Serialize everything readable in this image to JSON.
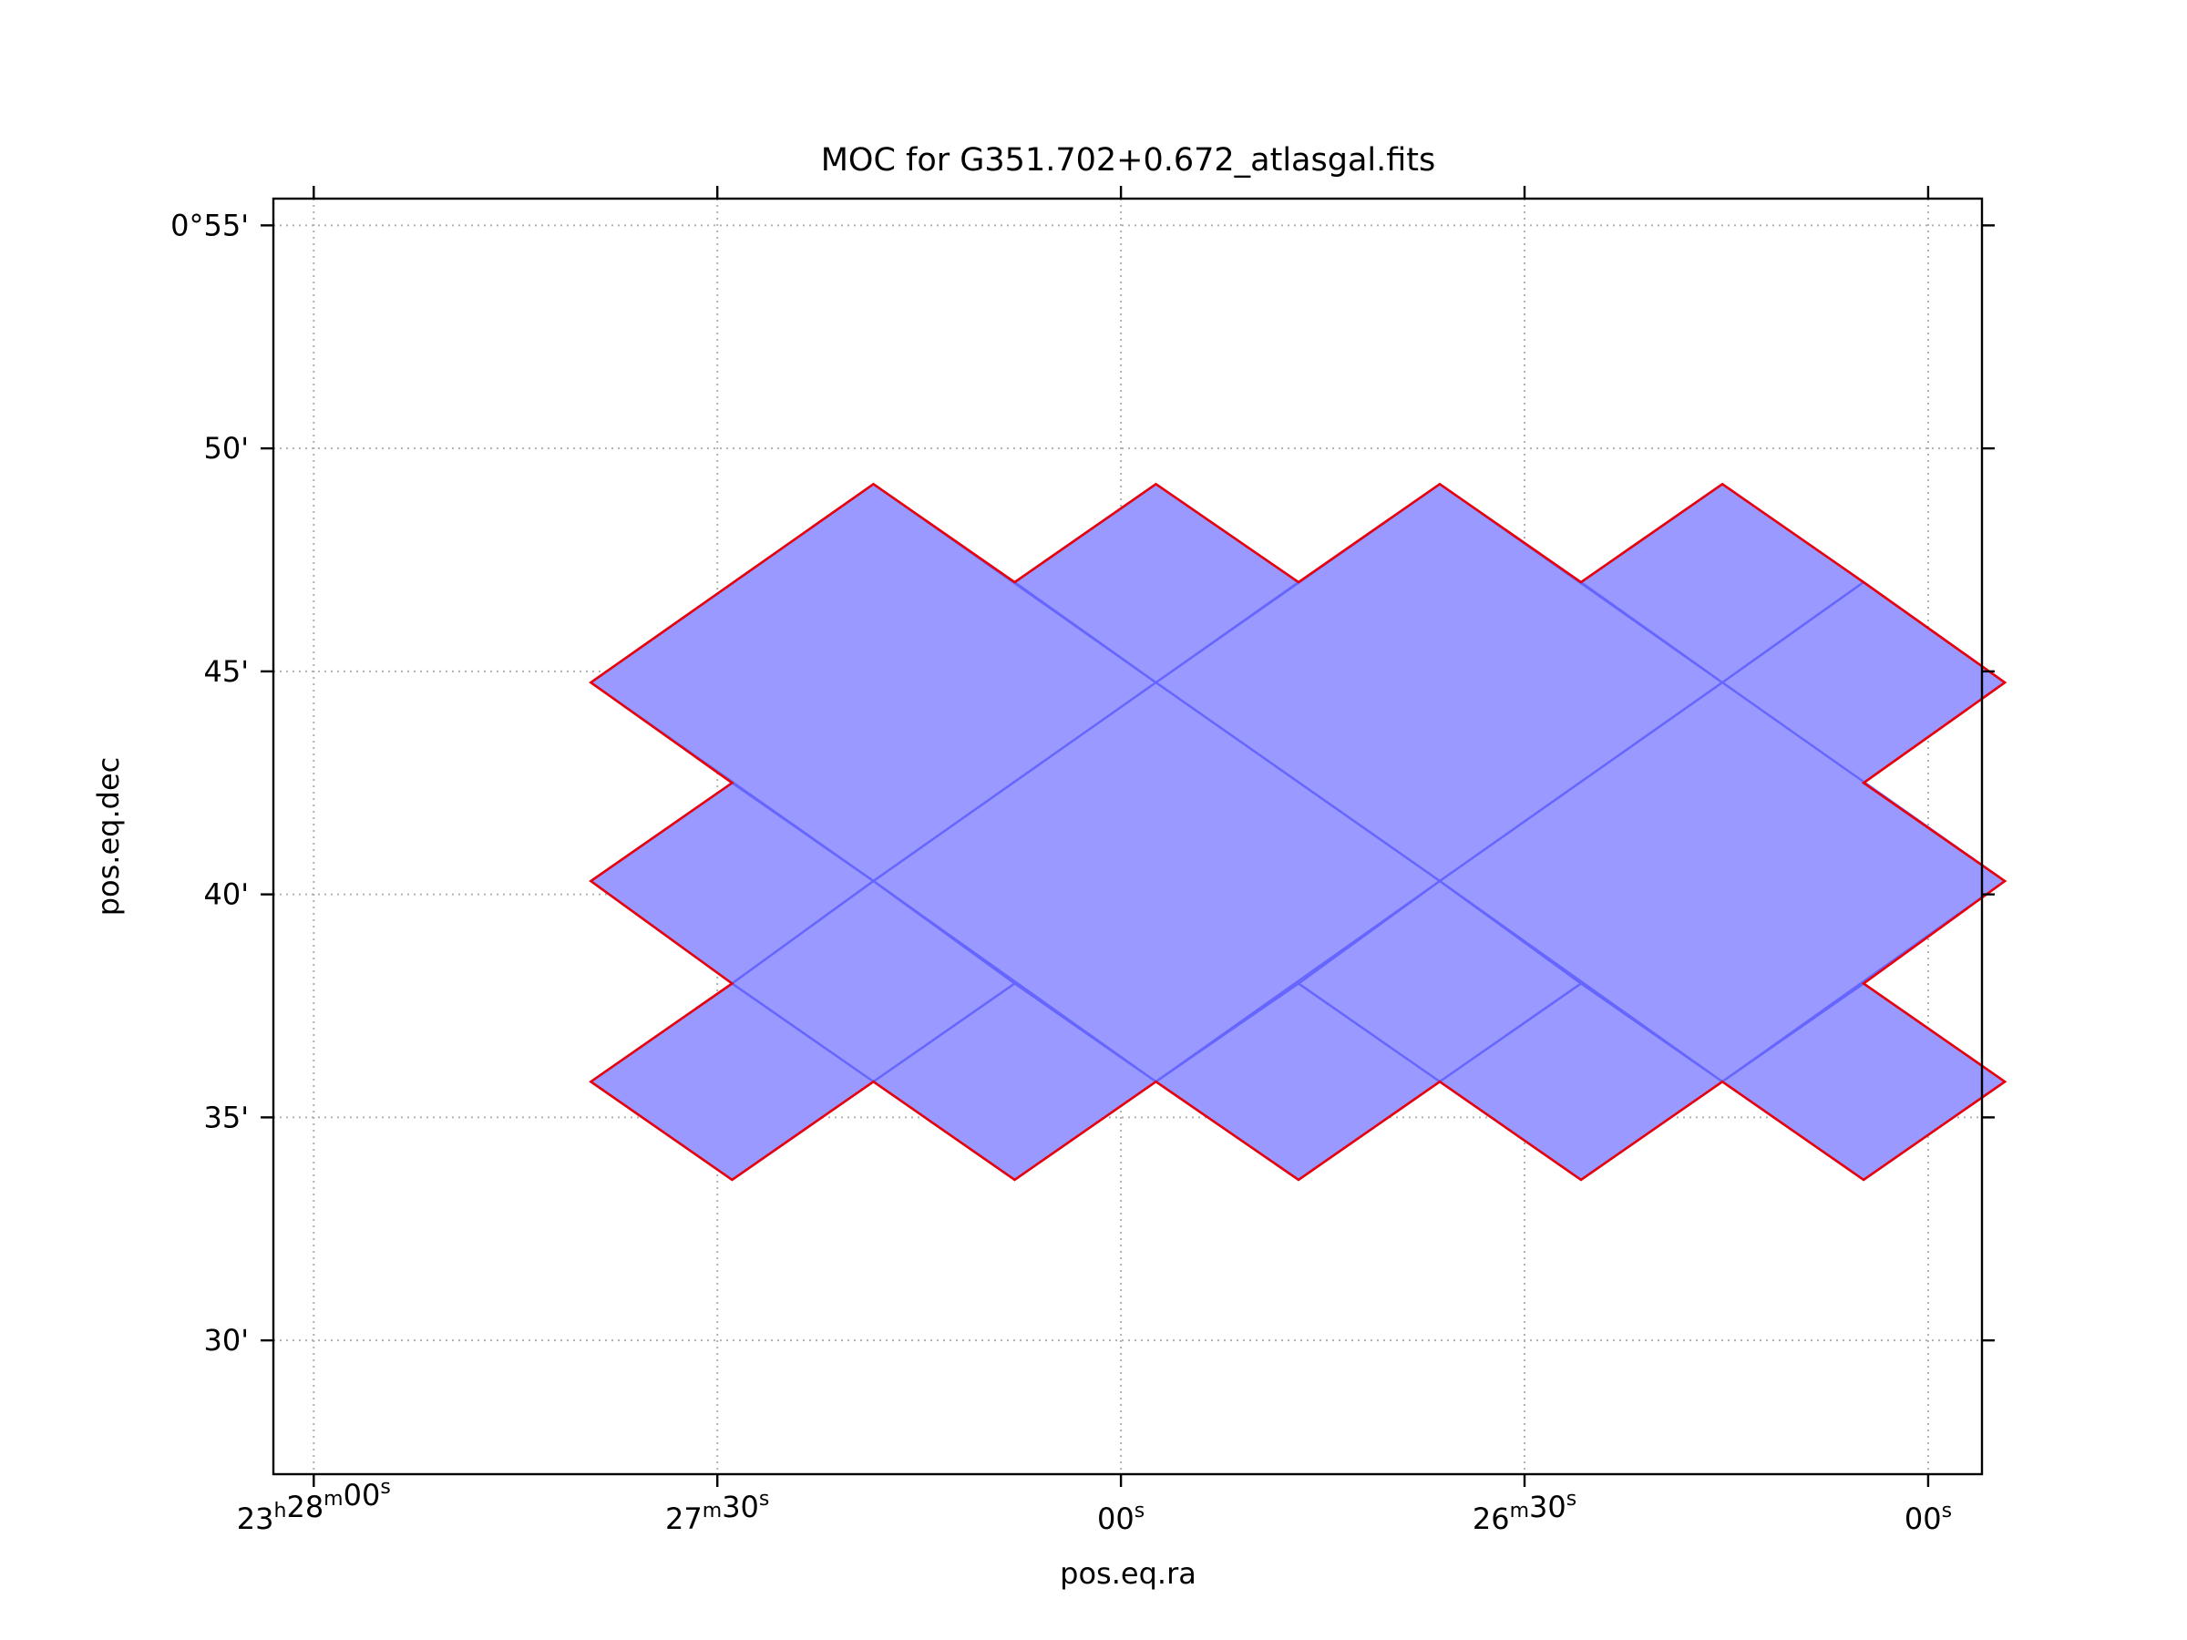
{
  "chart_data": {
    "type": "area",
    "title": "MOC for G351.702+0.672_atlasgal.fits",
    "xlabel": "pos.eq.ra",
    "ylabel": "pos.eq.dec",
    "x_unit": "seconds of RA offset from 23h28m00s (increasing to the right = decreasing RA)",
    "xlim": [
      -3,
      124
    ],
    "ylim": [
      27.0,
      55.6
    ],
    "grid": true,
    "x_ticks": [
      {
        "value": 0,
        "h": "23",
        "m": "28",
        "s": "00"
      },
      {
        "value": 30,
        "h": "",
        "m": "27",
        "s": "30"
      },
      {
        "value": 60,
        "h": "",
        "m": "",
        "s": "00"
      },
      {
        "value": 90,
        "h": "",
        "m": "26",
        "s": "30"
      },
      {
        "value": 120,
        "h": "",
        "m": "",
        "s": "00"
      }
    ],
    "y_ticks": [
      {
        "value": 55,
        "label": "0°55'"
      },
      {
        "value": 50,
        "label": "50'"
      },
      {
        "value": 45,
        "label": "45'"
      },
      {
        "value": 40,
        "label": "40'"
      },
      {
        "value": 35,
        "label": "35'"
      },
      {
        "value": 30,
        "label": "30'"
      }
    ],
    "fill_color": "#9999ff",
    "inner_edge_color": "#6666ff",
    "boundary_color": "#e8000b",
    "cells": [
      {
        "name": "top-big-1",
        "points": [
          [
            41.6,
            49.2
          ],
          [
            62.6,
            44.75
          ],
          [
            41.6,
            40.3
          ],
          [
            20.6,
            44.75
          ]
        ]
      },
      {
        "name": "top-big-2",
        "points": [
          [
            83.7,
            49.2
          ],
          [
            104.7,
            44.75
          ],
          [
            83.7,
            40.3
          ],
          [
            62.6,
            44.75
          ]
        ]
      },
      {
        "name": "top-small-1",
        "points": [
          [
            62.6,
            49.2
          ],
          [
            73.2,
            47.0
          ],
          [
            62.6,
            44.75
          ],
          [
            52.1,
            47.0
          ]
        ]
      },
      {
        "name": "top-small-2",
        "points": [
          [
            104.7,
            49.2
          ],
          [
            115.2,
            47.0
          ],
          [
            104.7,
            44.75
          ],
          [
            94.2,
            47.0
          ]
        ]
      },
      {
        "name": "right-small-1",
        "points": [
          [
            115.2,
            47.0
          ],
          [
            125.7,
            44.75
          ],
          [
            115.2,
            42.5
          ],
          [
            104.7,
            44.75
          ]
        ]
      },
      {
        "name": "mid-big-1",
        "points": [
          [
            62.6,
            44.75
          ],
          [
            83.7,
            40.3
          ],
          [
            62.6,
            35.8
          ],
          [
            41.6,
            40.3
          ]
        ]
      },
      {
        "name": "mid-big-2",
        "points": [
          [
            104.7,
            44.75
          ],
          [
            125.7,
            40.3
          ],
          [
            104.7,
            35.8
          ],
          [
            83.7,
            40.3
          ]
        ]
      },
      {
        "name": "left-small-1",
        "points": [
          [
            31.1,
            42.5
          ],
          [
            41.6,
            40.3
          ],
          [
            31.1,
            38.0
          ],
          [
            20.6,
            40.3
          ]
        ]
      },
      {
        "name": "bottom-small-1",
        "points": [
          [
            41.6,
            40.3
          ],
          [
            52.1,
            38.0
          ],
          [
            41.6,
            35.8
          ],
          [
            31.1,
            38.0
          ]
        ]
      },
      {
        "name": "bottom-small-2",
        "points": [
          [
            83.7,
            40.3
          ],
          [
            94.2,
            38.0
          ],
          [
            83.7,
            35.8
          ],
          [
            73.2,
            38.0
          ]
        ]
      },
      {
        "name": "bottom-small-3",
        "points": [
          [
            31.1,
            38.0
          ],
          [
            41.6,
            35.8
          ],
          [
            31.1,
            33.6
          ],
          [
            20.6,
            35.8
          ]
        ]
      },
      {
        "name": "bottom-small-4",
        "points": [
          [
            52.1,
            38.0
          ],
          [
            62.6,
            35.8
          ],
          [
            52.1,
            33.6
          ],
          [
            41.6,
            35.8
          ]
        ]
      },
      {
        "name": "bottom-small-5",
        "points": [
          [
            73.2,
            38.0
          ],
          [
            83.7,
            35.8
          ],
          [
            73.2,
            33.6
          ],
          [
            62.6,
            35.8
          ]
        ]
      },
      {
        "name": "bottom-small-6",
        "points": [
          [
            94.2,
            38.0
          ],
          [
            104.7,
            35.8
          ],
          [
            94.2,
            33.6
          ],
          [
            83.7,
            35.8
          ]
        ]
      },
      {
        "name": "bottom-small-7",
        "points": [
          [
            115.2,
            38.0
          ],
          [
            125.7,
            35.8
          ],
          [
            115.2,
            33.6
          ],
          [
            104.7,
            35.8
          ]
        ]
      }
    ],
    "boundary": [
      [
        20.6,
        44.75
      ],
      [
        41.6,
        49.2
      ],
      [
        52.1,
        47.0
      ],
      [
        62.6,
        49.2
      ],
      [
        73.2,
        47.0
      ],
      [
        83.7,
        49.2
      ],
      [
        94.2,
        47.0
      ],
      [
        104.7,
        49.2
      ],
      [
        115.2,
        47.0
      ],
      [
        125.7,
        44.75
      ],
      [
        115.2,
        42.5
      ],
      [
        125.7,
        40.3
      ],
      [
        115.2,
        38.0
      ],
      [
        125.7,
        35.8
      ],
      [
        115.2,
        33.6
      ],
      [
        104.7,
        35.8
      ],
      [
        94.2,
        33.6
      ],
      [
        83.7,
        35.8
      ],
      [
        73.2,
        33.6
      ],
      [
        62.6,
        35.8
      ],
      [
        52.1,
        33.6
      ],
      [
        41.6,
        35.8
      ],
      [
        31.1,
        33.6
      ],
      [
        20.6,
        35.8
      ],
      [
        31.1,
        38.0
      ],
      [
        20.6,
        40.3
      ],
      [
        31.1,
        42.5
      ],
      [
        20.6,
        44.75
      ]
    ]
  }
}
